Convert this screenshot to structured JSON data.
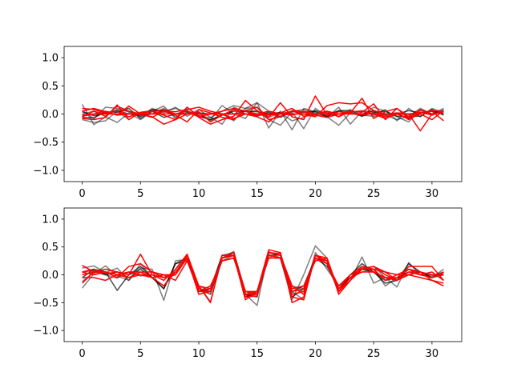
{
  "chart_data": [
    {
      "type": "line",
      "xlim": [
        -1.55,
        32.55
      ],
      "ylim": [
        -1.2,
        1.2
      ],
      "xticks": [
        0,
        5,
        10,
        15,
        20,
        25,
        30
      ],
      "yticks": [
        -1.0,
        -0.5,
        0.0,
        0.5,
        1.0
      ],
      "xtick_labels": [
        "0",
        "5",
        "10",
        "15",
        "20",
        "25",
        "30"
      ],
      "ytick_labels": [
        "−1.0",
        "−0.5",
        "0.0",
        "0.5",
        "1.0"
      ],
      "x": [
        0,
        1,
        2,
        3,
        4,
        5,
        6,
        7,
        8,
        9,
        10,
        11,
        12,
        13,
        14,
        15,
        16,
        17,
        18,
        19,
        20,
        21,
        22,
        23,
        24,
        25,
        26,
        27,
        28,
        29,
        30,
        31
      ],
      "series": [
        {
          "color": "#000000",
          "alpha": 0.5,
          "values": [
            0.17,
            -0.19,
            -0.05,
            -0.15,
            0.02,
            -0.1,
            0.05,
            0.14,
            -0.08,
            0.12,
            -0.03,
            -0.1,
            0.15,
            0.0,
            -0.08,
            0.2,
            -0.25,
            0.05,
            -0.28,
            0.1,
            0.04,
            -0.06,
            0.12,
            -0.18,
            0.05,
            -0.02,
            0.08,
            -0.12,
            0.1,
            -0.05,
            0.1,
            0.02
          ]
        },
        {
          "color": "#000000",
          "alpha": 0.5,
          "values": [
            0.06,
            -0.08,
            0.12,
            0.1,
            0.05,
            -0.05,
            0.1,
            0.02,
            0.12,
            -0.04,
            0.08,
            -0.06,
            -0.18,
            0.12,
            0.04,
            0.06,
            -0.1,
            -0.2,
            0.04,
            -0.26,
            0.1,
            -0.05,
            -0.2,
            0.02,
            -0.04,
            0.12,
            0.05,
            -0.05,
            -0.14,
            0.06,
            -0.02,
            0.08
          ]
        },
        {
          "color": "#000000",
          "alpha": 0.5,
          "values": [
            -0.1,
            -0.15,
            -0.12,
            0.05,
            -0.1,
            0.03,
            0.06,
            0.05,
            0.1,
            0.03,
            0.0,
            -0.12,
            0.0,
            -0.12,
            0.1,
            0.12,
            -0.06,
            0.02,
            -0.12,
            -0.06,
            0.06,
            0.02,
            -0.04,
            0.08,
            -0.02,
            -0.04,
            -0.02,
            -0.1,
            -0.04,
            0.1,
            0.0,
            0.1
          ]
        },
        {
          "color": "#000000",
          "alpha": 0.5,
          "values": [
            0.0,
            0.05,
            0.0,
            0.08,
            0.04,
            -0.04,
            0.0,
            0.1,
            -0.05,
            0.03,
            -0.05,
            -0.06,
            0.05,
            0.15,
            0.1,
            0.2,
            0.05,
            -0.04,
            0.05,
            0.08,
            0.02,
            -0.06,
            0.05,
            0.03,
            0.06,
            0.04,
            -0.02,
            0.02,
            -0.01,
            0.02,
            0.05,
            0.04
          ]
        },
        {
          "color": "#000000",
          "alpha": 0.7,
          "values": [
            -0.06,
            -0.07,
            0.04,
            0.03,
            0.1,
            -0.08,
            0.05,
            -0.06,
            0.0,
            0.06,
            -0.04,
            -0.1,
            -0.02,
            0.05,
            0.05,
            -0.04,
            0.03,
            -0.06,
            0.05,
            0.03,
            0.05,
            -0.04,
            0.06,
            0.06,
            -0.04,
            0.03,
            0.05,
            -0.04,
            -0.04,
            -0.04,
            0.08,
            -0.02
          ]
        },
        {
          "color": "#000000",
          "alpha": 0.7,
          "values": [
            0.04,
            -0.03,
            0.01,
            0.06,
            0.0,
            -0.02,
            0.08,
            0.05,
            0.0,
            0.0,
            0.02,
            0.0,
            0.0,
            0.0,
            0.05,
            0.04,
            0.0,
            0.03,
            0.0,
            0.0,
            0.0,
            0.0,
            0.05,
            0.0,
            0.0,
            0.06,
            0.0,
            0.0,
            0.06,
            0.02,
            0.05,
            0.0
          ]
        },
        {
          "color": "#ff0000",
          "alpha": 1.0,
          "values": [
            -0.08,
            -0.1,
            -0.06,
            0.16,
            -0.1,
            0.03,
            0.05,
            -0.02,
            -0.1,
            0.12,
            -0.06,
            -0.18,
            -0.1,
            -0.04,
            0.24,
            0.06,
            -0.06,
            0.2,
            -0.05,
            -0.1,
            0.32,
            -0.02,
            0.04,
            0.02,
            0.28,
            -0.08,
            0.04,
            0.1,
            -0.08,
            0.0,
            -0.1,
            0.06
          ]
        },
        {
          "color": "#ff0000",
          "alpha": 1.0,
          "values": [
            0.05,
            0.1,
            0.04,
            -0.02,
            0.14,
            0.0,
            -0.06,
            0.05,
            -0.02,
            -0.14,
            0.08,
            0.02,
            -0.06,
            -0.1,
            0.06,
            0.12,
            -0.1,
            -0.05,
            0.06,
            0.04,
            -0.02,
            0.04,
            -0.05,
            0.05,
            0.03,
            0.18,
            -0.1,
            0.1,
            -0.05,
            0.02,
            0.06,
            0.04
          ]
        },
        {
          "color": "#ff0000",
          "alpha": 1.0,
          "values": [
            -0.05,
            0.05,
            -0.04,
            0.14,
            0.05,
            0.0,
            -0.05,
            -0.18,
            -0.1,
            0.0,
            0.04,
            -0.14,
            -0.02,
            0.08,
            0.0,
            -0.05,
            -0.14,
            0.02,
            0.1,
            -0.04,
            -0.02,
            -0.06,
            0.0,
            0.02,
            -0.02,
            0.02,
            -0.05,
            0.02,
            -0.1,
            0.02,
            0.05,
            -0.12
          ]
        },
        {
          "color": "#ff0000",
          "alpha": 1.0,
          "values": [
            0.1,
            0.08,
            0.02,
            0.05,
            -0.05,
            0.02,
            0.04,
            0.08,
            0.0,
            0.05,
            -0.05,
            0.0,
            0.05,
            0.1,
            0.05,
            0.0,
            0.05,
            0.0,
            0.05,
            0.0,
            -0.05,
            0.15,
            0.2,
            0.18,
            0.2,
            0.06,
            0.0,
            0.02,
            0.0,
            0.03,
            -0.02,
            0.05
          ]
        },
        {
          "color": "#ff0000",
          "alpha": 1.0,
          "values": [
            -0.02,
            0.0,
            0.05,
            -0.02,
            0.0,
            0.02,
            0.0,
            0.05,
            0.04,
            0.08,
            0.12,
            0.05,
            0.0,
            -0.08,
            0.0,
            -0.02,
            -0.02,
            0.0,
            -0.02,
            0.05,
            0.0,
            0.05,
            0.0,
            0.04,
            0.05,
            0.0,
            -0.08,
            0.0,
            -0.08,
            0.08,
            0.0,
            0.04
          ]
        },
        {
          "color": "#ff0000",
          "alpha": 1.0,
          "values": [
            -0.04,
            0.0,
            0.0,
            0.0,
            0.0,
            0.0,
            0.0,
            0.0,
            0.0,
            0.0,
            0.0,
            0.0,
            0.0,
            0.0,
            0.0,
            0.0,
            0.0,
            0.0,
            0.0,
            0.0,
            0.0,
            0.0,
            0.0,
            0.0,
            0.0,
            0.0,
            0.0,
            0.0,
            0.0,
            -0.3,
            0.0,
            0.04
          ]
        }
      ]
    },
    {
      "type": "line",
      "xlim": [
        -1.55,
        32.55
      ],
      "ylim": [
        -1.2,
        1.2
      ],
      "xticks": [
        0,
        5,
        10,
        15,
        20,
        25,
        30
      ],
      "yticks": [
        -1.0,
        -0.5,
        0.0,
        0.5,
        1.0
      ],
      "xtick_labels": [
        "0",
        "5",
        "10",
        "15",
        "20",
        "25",
        "30"
      ],
      "ytick_labels": [
        "−1.0",
        "−0.5",
        "0.0",
        "0.5",
        "1.0"
      ],
      "x": [
        0,
        1,
        2,
        3,
        4,
        5,
        6,
        7,
        8,
        9,
        10,
        11,
        12,
        13,
        14,
        15,
        16,
        17,
        18,
        19,
        20,
        21,
        22,
        23,
        24,
        25,
        26,
        27,
        28,
        29,
        30,
        31
      ],
      "series": [
        {
          "color": "#000000",
          "alpha": 0.5,
          "values": [
            -0.24,
            0.02,
            0.16,
            -0.02,
            -0.1,
            0.12,
            0.1,
            -0.46,
            0.25,
            0.28,
            -0.2,
            -0.48,
            0.3,
            0.42,
            -0.35,
            -0.55,
            0.42,
            0.3,
            -0.45,
            0.0,
            0.52,
            0.3,
            -0.3,
            -0.1,
            0.32,
            -0.15,
            -0.05,
            -0.22,
            0.22,
            0.0,
            -0.05,
            0.1
          ]
        },
        {
          "color": "#000000",
          "alpha": 0.5,
          "values": [
            0.12,
            0.16,
            0.04,
            0.12,
            -0.1,
            0.2,
            -0.05,
            -0.2,
            0.1,
            0.3,
            -0.3,
            -0.3,
            0.35,
            0.4,
            -0.3,
            -0.35,
            0.36,
            0.35,
            -0.2,
            -0.25,
            0.35,
            0.2,
            -0.25,
            -0.05,
            0.12,
            0.15,
            -0.05,
            -0.1,
            0.1,
            0.05,
            0.0,
            0.02
          ]
        },
        {
          "color": "#000000",
          "alpha": 0.5,
          "values": [
            -0.12,
            0.05,
            0.0,
            -0.06,
            0.05,
            -0.02,
            0.0,
            -0.05,
            0.0,
            0.3,
            -0.2,
            -0.3,
            0.25,
            0.35,
            -0.4,
            -0.35,
            0.3,
            0.4,
            -0.3,
            -0.45,
            0.4,
            0.1,
            -0.2,
            0.0,
            0.05,
            0.1,
            -0.2,
            -0.05,
            0.0,
            0.05,
            -0.02,
            0.05
          ]
        },
        {
          "color": "#000000",
          "alpha": 0.7,
          "values": [
            0.05,
            0.08,
            0.0,
            0.05,
            0.0,
            0.1,
            -0.05,
            -0.25,
            0.2,
            0.3,
            -0.25,
            -0.35,
            0.3,
            0.4,
            -0.35,
            -0.4,
            0.4,
            0.35,
            -0.3,
            -0.2,
            0.3,
            0.15,
            -0.2,
            -0.05,
            0.1,
            0.05,
            -0.1,
            -0.05,
            0.05,
            0.05,
            -0.05,
            0.05
          ]
        },
        {
          "color": "#000000",
          "alpha": 0.7,
          "values": [
            -0.05,
            0.1,
            0.05,
            -0.28,
            0.0,
            0.15,
            -0.05,
            -0.25,
            0.2,
            0.25,
            -0.3,
            -0.25,
            0.35,
            0.35,
            -0.4,
            -0.3,
            0.35,
            0.3,
            -0.4,
            -0.25,
            0.3,
            0.2,
            -0.3,
            0.0,
            0.2,
            0.05,
            -0.15,
            -0.1,
            0.2,
            0.05,
            -0.05,
            0.0
          ]
        },
        {
          "color": "#ff0000",
          "alpha": 1.0,
          "values": [
            0.17,
            0.05,
            0.1,
            0.05,
            0.0,
            0.37,
            0.0,
            -0.1,
            0.1,
            0.37,
            -0.2,
            -0.5,
            0.35,
            0.35,
            -0.45,
            -0.3,
            0.45,
            0.4,
            -0.5,
            -0.4,
            0.35,
            0.3,
            -0.35,
            -0.1,
            0.15,
            0.1,
            0.05,
            -0.1,
            0.15,
            0.15,
            0.15,
            -0.1
          ]
        },
        {
          "color": "#ff0000",
          "alpha": 1.0,
          "values": [
            0.05,
            0.1,
            0.02,
            0.05,
            -0.05,
            0.05,
            -0.05,
            -0.2,
            0.05,
            0.3,
            -0.35,
            -0.3,
            0.3,
            0.4,
            -0.35,
            -0.35,
            0.4,
            0.35,
            -0.2,
            -0.35,
            0.3,
            0.2,
            -0.3,
            -0.05,
            0.1,
            0.1,
            -0.1,
            0.0,
            0.1,
            0.05,
            -0.1,
            -0.2
          ]
        },
        {
          "color": "#ff0000",
          "alpha": 1.0,
          "values": [
            0.0,
            0.05,
            0.05,
            0.0,
            0.05,
            0.05,
            0.05,
            -0.05,
            0.05,
            0.3,
            -0.3,
            -0.3,
            0.3,
            0.35,
            -0.4,
            -0.38,
            0.4,
            0.38,
            -0.4,
            -0.45,
            0.35,
            0.25,
            -0.25,
            0.0,
            0.15,
            0.05,
            -0.05,
            -0.05,
            0.1,
            0.0,
            -0.05,
            0.05
          ]
        },
        {
          "color": "#ff0000",
          "alpha": 1.0,
          "values": [
            -0.15,
            0.05,
            0.05,
            -0.05,
            0.15,
            0.2,
            0.05,
            0.0,
            0.0,
            0.35,
            -0.3,
            -0.2,
            0.25,
            0.3,
            -0.3,
            -0.35,
            0.35,
            0.3,
            -0.25,
            -0.2,
            0.25,
            0.3,
            -0.3,
            -0.1,
            0.1,
            0.15,
            0.0,
            -0.1,
            0.05,
            0.0,
            0.05,
            -0.1
          ]
        },
        {
          "color": "#ff0000",
          "alpha": 1.0,
          "values": [
            0.05,
            0.0,
            0.05,
            0.0,
            0.05,
            0.0,
            0.0,
            -0.05,
            0.0,
            0.3,
            -0.25,
            -0.3,
            0.3,
            0.35,
            -0.3,
            -0.3,
            0.35,
            0.3,
            -0.3,
            -0.25,
            0.3,
            0.2,
            -0.2,
            0.0,
            0.1,
            0.15,
            0.05,
            0.0,
            0.0,
            0.05,
            0.0,
            0.0
          ]
        },
        {
          "color": "#ff0000",
          "alpha": 1.0,
          "values": [
            -0.05,
            -0.05,
            -0.1,
            0.0,
            -0.05,
            0.0,
            -0.05,
            0.0,
            -0.1,
            0.25,
            -0.2,
            -0.25,
            0.25,
            0.3,
            -0.35,
            -0.3,
            0.3,
            0.3,
            -0.35,
            -0.3,
            0.3,
            0.25,
            -0.3,
            -0.05,
            0.05,
            0.05,
            -0.05,
            -0.1,
            0.0,
            -0.05,
            -0.1,
            -0.15
          ]
        }
      ]
    }
  ]
}
